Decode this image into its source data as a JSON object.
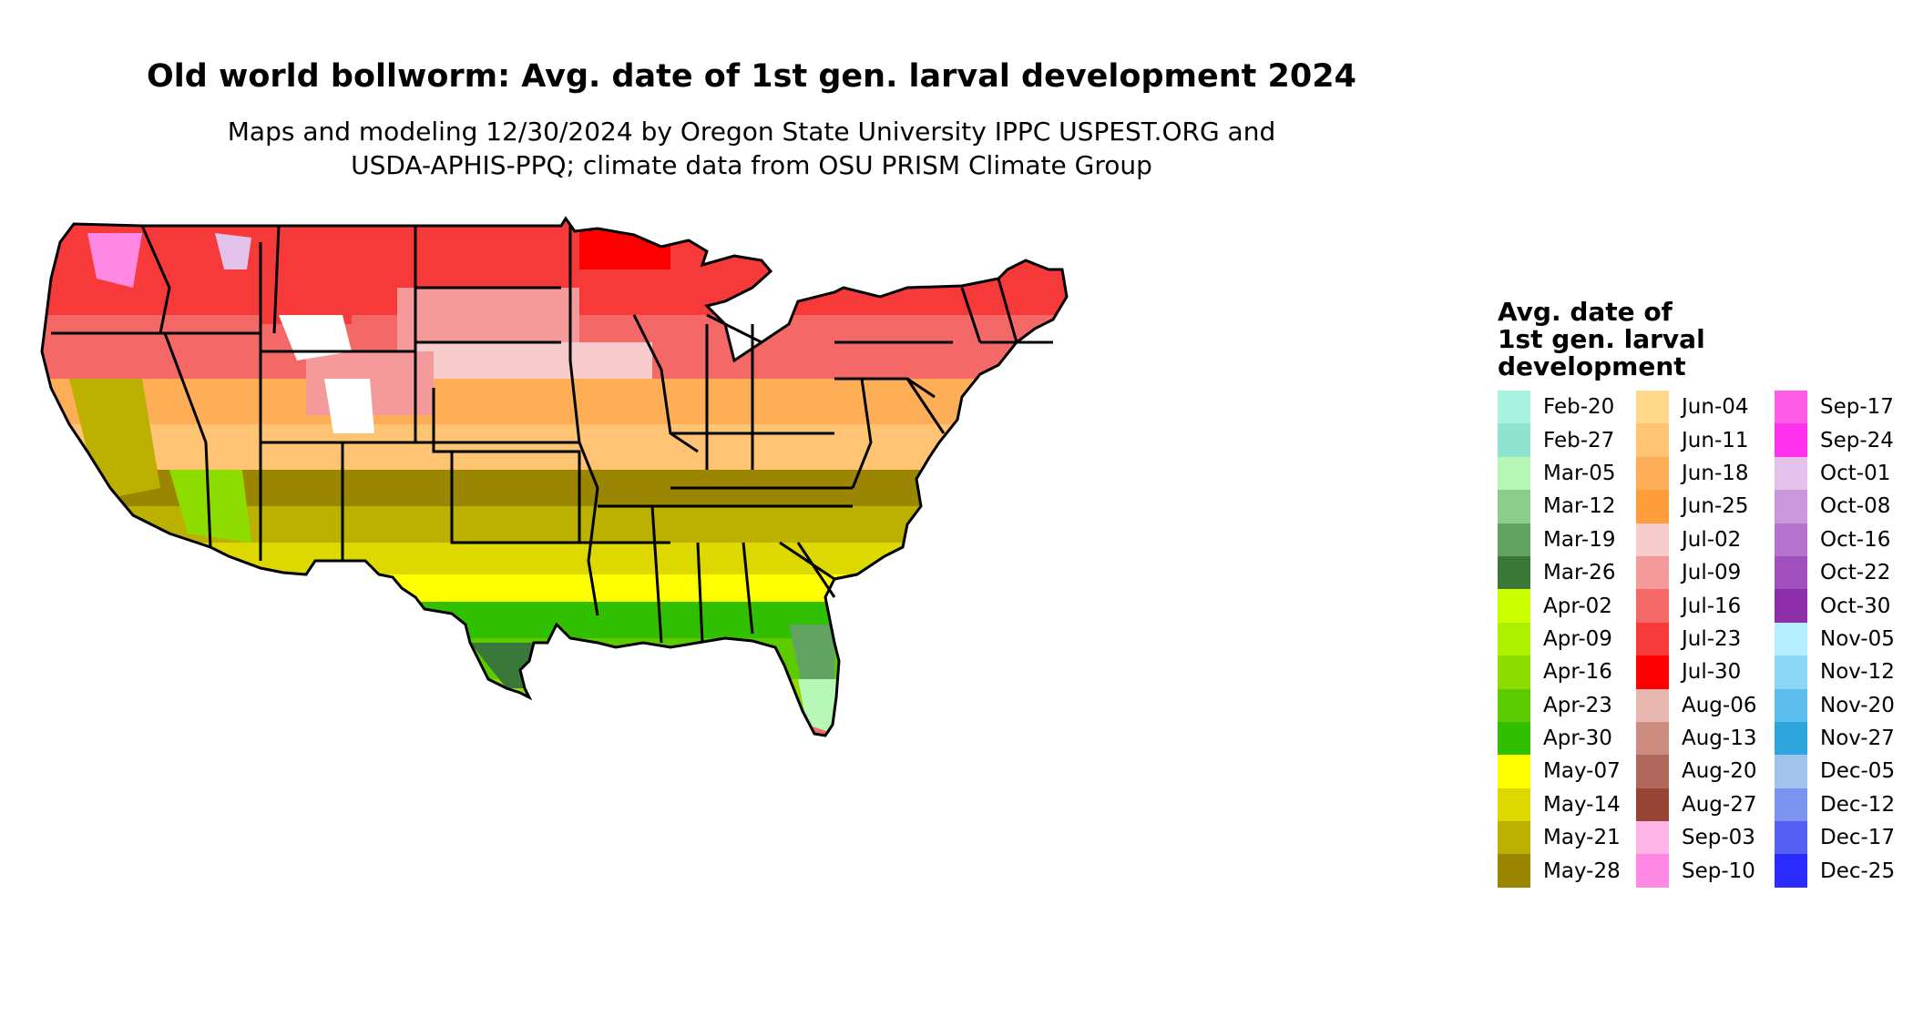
{
  "title": "Old world bollworm: Avg. date of 1st gen. larval development 2024",
  "subtitle": [
    "Maps and modeling 12/30/2024 by Oregon State University IPPC USPEST.ORG and",
    "USDA-APHIS-PPQ; climate data from OSU PRISM Climate Group"
  ],
  "legend": {
    "title": [
      "Avg. date of",
      "1st gen. larval",
      "development"
    ],
    "columns": [
      [
        {
          "label": "Feb-20",
          "color": "#a7f3df"
        },
        {
          "label": "Feb-27",
          "color": "#8fe3cf"
        },
        {
          "label": "Mar-05",
          "color": "#b6f7b6"
        },
        {
          "label": "Mar-12",
          "color": "#8ccc8c"
        },
        {
          "label": "Mar-19",
          "color": "#62a362"
        },
        {
          "label": "Mar-26",
          "color": "#3a783a"
        },
        {
          "label": "Apr-02",
          "color": "#ccff00"
        },
        {
          "label": "Apr-09",
          "color": "#aef000"
        },
        {
          "label": "Apr-16",
          "color": "#8edc00"
        },
        {
          "label": "Apr-23",
          "color": "#5ccc00"
        },
        {
          "label": "Apr-30",
          "color": "#30c000"
        },
        {
          "label": "May-07",
          "color": "#ffff00"
        },
        {
          "label": "May-14",
          "color": "#dcd800"
        },
        {
          "label": "May-21",
          "color": "#bcb000"
        },
        {
          "label": "May-28",
          "color": "#9a8600"
        }
      ],
      [
        {
          "label": "Jun-04",
          "color": "#ffd88c"
        },
        {
          "label": "Jun-11",
          "color": "#ffc374"
        },
        {
          "label": "Jun-18",
          "color": "#ffae58"
        },
        {
          "label": "Jun-25",
          "color": "#ff9d3a"
        },
        {
          "label": "Jul-02",
          "color": "#f7cccc"
        },
        {
          "label": "Jul-09",
          "color": "#f59a9a"
        },
        {
          "label": "Jul-16",
          "color": "#f46868"
        },
        {
          "label": "Jul-23",
          "color": "#f63a3a"
        },
        {
          "label": "Jul-30",
          "color": "#ff0000"
        },
        {
          "label": "Aug-06",
          "color": "#e8b8b0"
        },
        {
          "label": "Aug-13",
          "color": "#cc8c80"
        },
        {
          "label": "Aug-20",
          "color": "#b0685c"
        },
        {
          "label": "Aug-27",
          "color": "#964434"
        },
        {
          "label": "Sep-03",
          "color": "#ffb4e6"
        },
        {
          "label": "Sep-10",
          "color": "#ff88e4"
        }
      ],
      [
        {
          "label": "Sep-17",
          "color": "#ff5ce8"
        },
        {
          "label": "Sep-24",
          "color": "#ff30ee"
        },
        {
          "label": "Oct-01",
          "color": "#e2c2ea"
        },
        {
          "label": "Oct-08",
          "color": "#ca98da"
        },
        {
          "label": "Oct-16",
          "color": "#b474cc"
        },
        {
          "label": "Oct-22",
          "color": "#a050bc"
        },
        {
          "label": "Oct-30",
          "color": "#8c2eaa"
        },
        {
          "label": "Nov-05",
          "color": "#b6eefe"
        },
        {
          "label": "Nov-12",
          "color": "#8ad6f4"
        },
        {
          "label": "Nov-20",
          "color": "#5cbcec"
        },
        {
          "label": "Nov-27",
          "color": "#2ea6dc"
        },
        {
          "label": "Dec-05",
          "color": "#a2c4ec"
        },
        {
          "label": "Dec-12",
          "color": "#7c94f0"
        },
        {
          "label": "Dec-17",
          "color": "#5460f4"
        },
        {
          "label": "Dec-25",
          "color": "#2c2cff"
        }
      ]
    ]
  }
}
